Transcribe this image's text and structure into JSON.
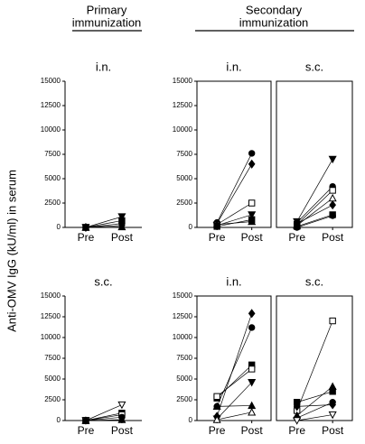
{
  "headers": [
    [
      "Primary",
      "immunization"
    ],
    [
      "Secondary",
      "immunization"
    ]
  ],
  "ylabel": "Anti-OMV IgG (kU/ml) in serum",
  "chart_data": [
    {
      "type": "line",
      "title": "i.n.",
      "frame": "axes",
      "categories": [
        "Pre",
        "Post"
      ],
      "ylim": [
        0,
        15000
      ],
      "yticks": [
        0,
        2500,
        5000,
        7500,
        10000,
        12500,
        15000
      ],
      "series": [
        {
          "marker": "triangle-down",
          "fill": "black",
          "values": [
            0,
            1100
          ]
        },
        {
          "marker": "square",
          "fill": "black",
          "values": [
            0,
            700
          ]
        },
        {
          "marker": "circle",
          "fill": "black",
          "values": [
            0,
            400
          ]
        },
        {
          "marker": "diamond",
          "fill": "black",
          "values": [
            0,
            200
          ]
        },
        {
          "marker": "triangle",
          "fill": "black",
          "values": [
            0,
            50
          ]
        }
      ]
    },
    {
      "type": "line",
      "title": "i.n.",
      "frame": "box",
      "categories": [
        "Pre",
        "Post"
      ],
      "ylim": [
        0,
        15000
      ],
      "yticks": [
        0,
        2500,
        5000,
        7500,
        10000,
        12500,
        15000
      ],
      "series": [
        {
          "marker": "circle",
          "fill": "black",
          "values": [
            500,
            7600
          ]
        },
        {
          "marker": "diamond",
          "fill": "black",
          "values": [
            400,
            6500
          ]
        },
        {
          "marker": "square",
          "fill": "white",
          "values": [
            300,
            2500
          ]
        },
        {
          "marker": "triangle-down",
          "fill": "black",
          "values": [
            200,
            1300
          ]
        },
        {
          "marker": "square",
          "fill": "black",
          "values": [
            100,
            800
          ]
        },
        {
          "marker": "triangle",
          "fill": "black",
          "values": [
            300,
            600
          ]
        }
      ]
    },
    {
      "type": "line",
      "title": "s.c.",
      "frame": "box",
      "categories": [
        "Pre",
        "Post"
      ],
      "ylim": [
        0,
        15000
      ],
      "series": [
        {
          "marker": "triangle-down",
          "fill": "black",
          "values": [
            600,
            7000
          ]
        },
        {
          "marker": "circle",
          "fill": "black",
          "values": [
            500,
            4200
          ]
        },
        {
          "marker": "square",
          "fill": "white",
          "values": [
            300,
            3800
          ]
        },
        {
          "marker": "triangle",
          "fill": "white",
          "values": [
            200,
            3000
          ]
        },
        {
          "marker": "diamond",
          "fill": "black",
          "values": [
            400,
            2300
          ]
        },
        {
          "marker": "square",
          "fill": "black",
          "values": [
            100,
            1300
          ]
        },
        {
          "marker": "circle",
          "fill": "black",
          "values": [
            0,
            1200
          ]
        }
      ]
    },
    {
      "type": "line",
      "title": "s.c.",
      "frame": "axes",
      "categories": [
        "Pre",
        "Post"
      ],
      "ylim": [
        0,
        15000
      ],
      "yticks": [
        0,
        2500,
        5000,
        7500,
        10000,
        12500,
        15000
      ],
      "series": [
        {
          "marker": "triangle-down",
          "fill": "white",
          "values": [
            0,
            1900
          ]
        },
        {
          "marker": "square",
          "fill": "black",
          "values": [
            0,
            900
          ]
        },
        {
          "marker": "square",
          "fill": "white",
          "values": [
            0,
            700
          ]
        },
        {
          "marker": "circle",
          "fill": "black",
          "values": [
            0,
            400
          ]
        },
        {
          "marker": "triangle",
          "fill": "black",
          "values": [
            0,
            100
          ]
        }
      ]
    },
    {
      "type": "line",
      "title": "i.n.",
      "frame": "box",
      "categories": [
        "Pre",
        "Post"
      ],
      "ylim": [
        0,
        15000
      ],
      "yticks": [
        0,
        2500,
        5000,
        7500,
        10000,
        12500,
        15000
      ],
      "series": [
        {
          "marker": "diamond",
          "fill": "black",
          "values": [
            500,
            12900
          ]
        },
        {
          "marker": "circle",
          "fill": "black",
          "values": [
            1700,
            11200
          ]
        },
        {
          "marker": "square",
          "fill": "black",
          "values": [
            2700,
            6700
          ]
        },
        {
          "marker": "square",
          "fill": "white",
          "values": [
            2900,
            6200
          ]
        },
        {
          "marker": "triangle-down",
          "fill": "black",
          "values": [
            200,
            4600
          ]
        },
        {
          "marker": "triangle",
          "fill": "black",
          "values": [
            1700,
            1800
          ]
        },
        {
          "marker": "triangle",
          "fill": "white",
          "values": [
            100,
            1000
          ]
        }
      ]
    },
    {
      "type": "line",
      "title": "s.c.",
      "frame": "box",
      "categories": [
        "Pre",
        "Post"
      ],
      "ylim": [
        0,
        15000
      ],
      "series": [
        {
          "marker": "square",
          "fill": "white",
          "values": [
            1200,
            12000
          ]
        },
        {
          "marker": "triangle",
          "fill": "black",
          "values": [
            600,
            4100
          ]
        },
        {
          "marker": "square",
          "fill": "black",
          "values": [
            2200,
            3500
          ]
        },
        {
          "marker": "circle",
          "fill": "black",
          "values": [
            300,
            2200
          ]
        },
        {
          "marker": "diamond",
          "fill": "black",
          "values": [
            1700,
            1900
          ]
        },
        {
          "marker": "triangle-down",
          "fill": "white",
          "values": [
            0,
            700
          ]
        }
      ]
    }
  ]
}
